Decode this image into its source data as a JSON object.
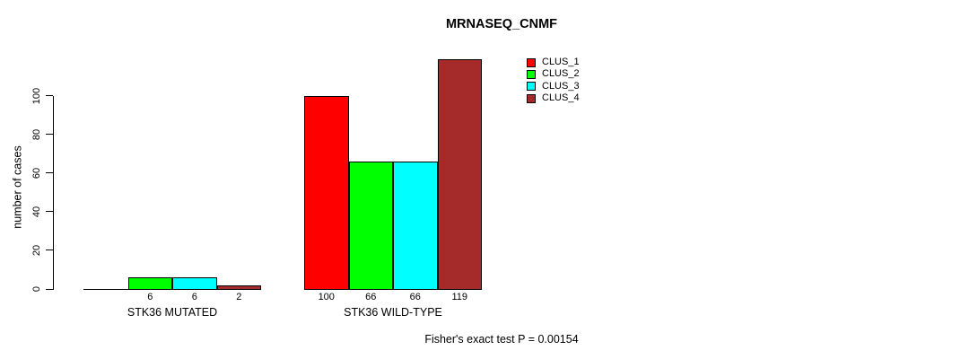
{
  "chart_data": {
    "type": "bar",
    "title": "MRNASEQ_CNMF",
    "ylabel": "number of cases",
    "xlabel": "",
    "ylim": [
      0,
      100
    ],
    "yticks": [
      0,
      20,
      40,
      60,
      80,
      100
    ],
    "grid": false,
    "legend_position": "top-right",
    "legend": [
      {
        "name": "CLUS_1",
        "color": "#FF0000"
      },
      {
        "name": "CLUS_2",
        "color": "#00FF00"
      },
      {
        "name": "CLUS_3",
        "color": "#00FFFF"
      },
      {
        "name": "CLUS_4",
        "color": "#A52A2A"
      }
    ],
    "series_colors": [
      "#FF0000",
      "#00FF00",
      "#00FFFF",
      "#A52A2A"
    ],
    "groups": [
      {
        "label": "STK36 MUTATED",
        "values": [
          0,
          6,
          6,
          2
        ],
        "bar_labels": [
          "",
          "6",
          "6",
          "2"
        ]
      },
      {
        "label": "STK36 WILD-TYPE",
        "values": [
          100,
          66,
          66,
          119
        ],
        "bar_labels": [
          "100",
          "66",
          "66",
          "119"
        ]
      }
    ],
    "footnote": "Fisher's exact test P = 0.00154"
  }
}
